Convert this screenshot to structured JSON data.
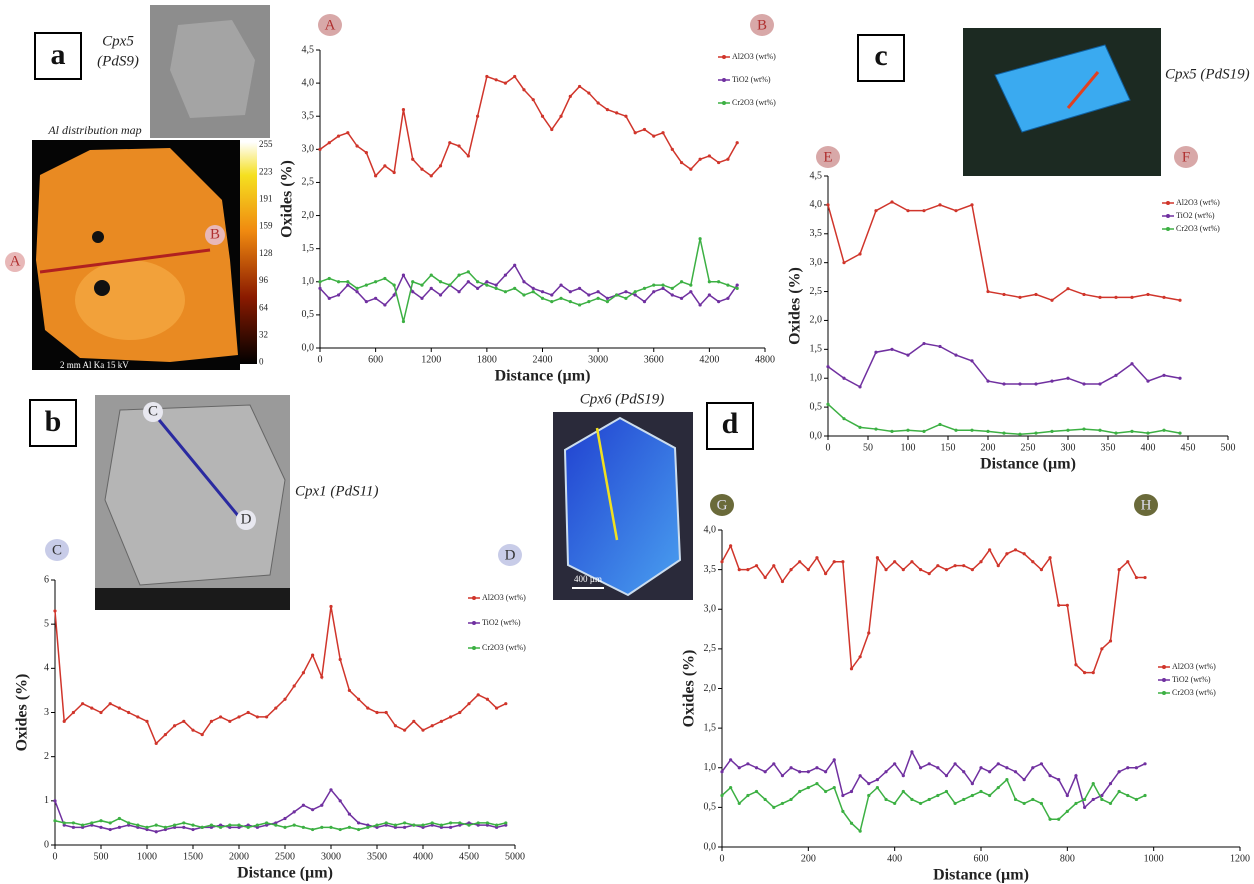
{
  "panels": [
    {
      "letter": "a",
      "sample": [
        "Cpx5",
        "(PdS9)"
      ],
      "map_title": "Al distribution map",
      "map_scale": "2 mm  Al Ka  15 kV",
      "colorbar": [
        "255",
        "223",
        "191",
        "159",
        "128",
        "96",
        "64",
        "32",
        "0"
      ],
      "line_start": "A",
      "line_end": "B"
    },
    {
      "letter": "b",
      "sample": "Cpx1 (PdS11)",
      "line_start": "C",
      "line_end": "D"
    },
    {
      "letter": "c",
      "sample": "Cpx5 (PdS19)",
      "line_start": "E",
      "line_end": "F"
    },
    {
      "letter": "d",
      "sample": "Cpx6 (PdS19)",
      "scale": "400 µm",
      "line_start": "G",
      "line_end": "H"
    }
  ],
  "chart_data": [
    {
      "type": "line",
      "start_marker": "A",
      "end_marker": "B",
      "xlabel": "Distance (µm)",
      "ylabel": "Oxides (%)",
      "xlim": [
        0,
        4800
      ],
      "xticks": [
        0,
        600,
        1200,
        1800,
        2400,
        3000,
        3600,
        4200,
        4800
      ],
      "ylim": [
        0,
        4.5
      ],
      "yticks": [
        {
          "value": 0,
          "label": "0,0"
        },
        {
          "value": 0.5,
          "label": "0,5"
        },
        {
          "value": 1,
          "label": "1,0"
        },
        {
          "value": 1.5,
          "label": "1,5"
        },
        {
          "value": 2,
          "label": "2,0"
        },
        {
          "value": 2.5,
          "label": "2,5"
        },
        {
          "value": 3,
          "label": "3,0"
        },
        {
          "value": 3.5,
          "label": "3,5"
        },
        {
          "value": 4,
          "label": "4,0"
        },
        {
          "value": 4.5,
          "label": "4,5"
        }
      ],
      "x": [
        0,
        100,
        200,
        300,
        400,
        500,
        600,
        700,
        800,
        900,
        1000,
        1100,
        1200,
        1300,
        1400,
        1500,
        1600,
        1700,
        1800,
        1900,
        2000,
        2100,
        2200,
        2300,
        2400,
        2500,
        2600,
        2700,
        2800,
        2900,
        3000,
        3100,
        3200,
        3300,
        3400,
        3500,
        3600,
        3700,
        3800,
        3900,
        4000,
        4100,
        4200,
        4300,
        4400,
        4500
      ],
      "series": [
        {
          "name": "Al2O3 (wt%)",
          "color": "#d0352b",
          "values": [
            3.0,
            3.1,
            3.2,
            3.25,
            3.05,
            2.95,
            2.6,
            2.75,
            2.65,
            3.6,
            2.85,
            2.7,
            2.6,
            2.75,
            3.1,
            3.05,
            2.9,
            3.5,
            4.1,
            4.05,
            4.0,
            4.1,
            3.9,
            3.75,
            3.5,
            3.3,
            3.5,
            3.8,
            3.95,
            3.85,
            3.7,
            3.6,
            3.55,
            3.5,
            3.25,
            3.3,
            3.2,
            3.25,
            3.0,
            2.8,
            2.7,
            2.85,
            2.9,
            2.8,
            2.85,
            3.1
          ]
        },
        {
          "name": "TiO2 (wt%)",
          "color": "#7030a0",
          "values": [
            0.9,
            0.75,
            0.8,
            0.95,
            0.85,
            0.7,
            0.75,
            0.65,
            0.8,
            1.1,
            0.85,
            0.75,
            0.9,
            0.8,
            0.95,
            0.85,
            1.0,
            0.9,
            1.0,
            0.95,
            1.1,
            1.25,
            1.0,
            0.9,
            0.85,
            0.8,
            0.95,
            0.85,
            0.9,
            0.8,
            0.85,
            0.75,
            0.8,
            0.85,
            0.8,
            0.7,
            0.85,
            0.9,
            0.8,
            0.75,
            0.85,
            0.65,
            0.8,
            0.7,
            0.75,
            0.95
          ]
        },
        {
          "name": "Cr2O3 (wt%)",
          "color": "#3cb043",
          "values": [
            1.0,
            1.05,
            1.0,
            1.0,
            0.9,
            0.95,
            1.0,
            1.05,
            0.95,
            0.4,
            1.0,
            0.95,
            1.1,
            1.0,
            0.95,
            1.1,
            1.15,
            1.0,
            0.95,
            0.9,
            0.85,
            0.9,
            0.8,
            0.85,
            0.75,
            0.7,
            0.75,
            0.7,
            0.65,
            0.7,
            0.75,
            0.7,
            0.8,
            0.75,
            0.85,
            0.9,
            0.95,
            0.95,
            0.9,
            1.0,
            0.95,
            1.65,
            1.0,
            1.0,
            0.95,
            0.9
          ]
        }
      ]
    },
    {
      "type": "line",
      "start_marker": "C",
      "end_marker": "D",
      "xlabel": "Distance (µm)",
      "ylabel": "Oxides (%)",
      "xlim": [
        0,
        5000
      ],
      "xticks": [
        0,
        500,
        1000,
        1500,
        2000,
        2500,
        3000,
        3500,
        4000,
        4500,
        5000
      ],
      "ylim": [
        0,
        6
      ],
      "yticks": [
        0,
        1,
        2,
        3,
        4,
        5,
        6
      ],
      "x": [
        0,
        100,
        200,
        300,
        400,
        500,
        600,
        700,
        800,
        900,
        1000,
        1100,
        1200,
        1300,
        1400,
        1500,
        1600,
        1700,
        1800,
        1900,
        2000,
        2100,
        2200,
        2300,
        2400,
        2500,
        2600,
        2700,
        2800,
        2900,
        3000,
        3100,
        3200,
        3300,
        3400,
        3500,
        3600,
        3700,
        3800,
        3900,
        4000,
        4100,
        4200,
        4300,
        4400,
        4500,
        4600,
        4700,
        4800,
        4900
      ],
      "series": [
        {
          "name": "Al2O3 (wt%)",
          "color": "#d0352b",
          "values": [
            5.3,
            2.8,
            3.0,
            3.2,
            3.1,
            3.0,
            3.2,
            3.1,
            3.0,
            2.9,
            2.8,
            2.3,
            2.5,
            2.7,
            2.8,
            2.6,
            2.5,
            2.8,
            2.9,
            2.8,
            2.9,
            3.0,
            2.9,
            2.9,
            3.1,
            3.3,
            3.6,
            3.9,
            4.3,
            3.8,
            5.4,
            4.2,
            3.5,
            3.3,
            3.1,
            3.0,
            3.0,
            2.7,
            2.6,
            2.8,
            2.6,
            2.7,
            2.8,
            2.9,
            3.0,
            3.2,
            3.4,
            3.3,
            3.1,
            3.2
          ]
        },
        {
          "name": "TiO2 (wt%)",
          "color": "#7030a0",
          "values": [
            1.0,
            0.45,
            0.4,
            0.4,
            0.45,
            0.4,
            0.35,
            0.4,
            0.45,
            0.4,
            0.35,
            0.3,
            0.35,
            0.4,
            0.4,
            0.35,
            0.4,
            0.4,
            0.45,
            0.4,
            0.4,
            0.45,
            0.4,
            0.45,
            0.5,
            0.6,
            0.75,
            0.9,
            0.8,
            0.9,
            1.25,
            1.0,
            0.7,
            0.5,
            0.45,
            0.4,
            0.45,
            0.4,
            0.4,
            0.45,
            0.4,
            0.45,
            0.4,
            0.4,
            0.45,
            0.5,
            0.45,
            0.45,
            0.4,
            0.45
          ]
        },
        {
          "name": "Cr2O3 (wt%)",
          "color": "#3cb043",
          "values": [
            0.55,
            0.5,
            0.5,
            0.45,
            0.5,
            0.55,
            0.5,
            0.6,
            0.5,
            0.45,
            0.4,
            0.45,
            0.4,
            0.45,
            0.5,
            0.45,
            0.4,
            0.45,
            0.4,
            0.45,
            0.45,
            0.4,
            0.45,
            0.5,
            0.45,
            0.4,
            0.45,
            0.4,
            0.35,
            0.4,
            0.4,
            0.35,
            0.4,
            0.35,
            0.4,
            0.45,
            0.5,
            0.45,
            0.5,
            0.45,
            0.45,
            0.5,
            0.45,
            0.5,
            0.5,
            0.45,
            0.5,
            0.5,
            0.45,
            0.5
          ]
        }
      ]
    },
    {
      "type": "line",
      "start_marker": "E",
      "end_marker": "F",
      "xlabel": "Distance (µm)",
      "ylabel": "Oxides (%)",
      "xlim": [
        0,
        500
      ],
      "xticks": [
        0,
        50,
        100,
        150,
        200,
        250,
        300,
        350,
        400,
        450,
        500
      ],
      "ylim": [
        0,
        4.5
      ],
      "yticks": [
        {
          "value": 0,
          "label": "0,0"
        },
        {
          "value": 0.5,
          "label": "0,5"
        },
        {
          "value": 1,
          "label": "1,0"
        },
        {
          "value": 1.5,
          "label": "1,5"
        },
        {
          "value": 2,
          "label": "2,0"
        },
        {
          "value": 2.5,
          "label": "2,5"
        },
        {
          "value": 3,
          "label": "3,0"
        },
        {
          "value": 3.5,
          "label": "3,5"
        },
        {
          "value": 4,
          "label": "4,0"
        },
        {
          "value": 4.5,
          "label": "4,5"
        }
      ],
      "x": [
        0,
        20,
        40,
        60,
        80,
        100,
        120,
        140,
        160,
        180,
        200,
        220,
        240,
        260,
        280,
        300,
        320,
        340,
        360,
        380,
        400,
        420,
        440
      ],
      "series": [
        {
          "name": "Al2O3 (wt%)",
          "color": "#d0352b",
          "values": [
            4.0,
            3.0,
            3.15,
            3.9,
            4.05,
            3.9,
            3.9,
            4.0,
            3.9,
            4.0,
            2.5,
            2.45,
            2.4,
            2.45,
            2.35,
            2.55,
            2.45,
            2.4,
            2.4,
            2.4,
            2.45,
            2.4,
            2.35
          ]
        },
        {
          "name": "TiO2 (wt%)",
          "color": "#7030a0",
          "values": [
            1.2,
            1.0,
            0.85,
            1.45,
            1.5,
            1.4,
            1.6,
            1.55,
            1.4,
            1.3,
            0.95,
            0.9,
            0.9,
            0.9,
            0.95,
            1.0,
            0.9,
            0.9,
            1.05,
            1.25,
            0.95,
            1.05,
            1.0
          ]
        },
        {
          "name": "Cr2O3 (wt%)",
          "color": "#3cb043",
          "values": [
            0.55,
            0.3,
            0.15,
            0.12,
            0.08,
            0.1,
            0.08,
            0.2,
            0.1,
            0.1,
            0.08,
            0.05,
            0.03,
            0.05,
            0.08,
            0.1,
            0.12,
            0.1,
            0.05,
            0.08,
            0.05,
            0.1,
            0.05
          ]
        }
      ]
    },
    {
      "type": "line",
      "start_marker": "G",
      "end_marker": "H",
      "xlabel": "Distance (µm)",
      "ylabel": "Oxides (%)",
      "xlim": [
        0,
        1200
      ],
      "xticks": [
        0,
        200,
        400,
        600,
        800,
        1000,
        1200
      ],
      "ylim": [
        0,
        4
      ],
      "yticks": [
        {
          "value": 0,
          "label": "0,0"
        },
        {
          "value": 0.5,
          "label": "0,5"
        },
        {
          "value": 1,
          "label": "1,0"
        },
        {
          "value": 1.5,
          "label": "1,5"
        },
        {
          "value": 2,
          "label": "2,0"
        },
        {
          "value": 2.5,
          "label": "2,5"
        },
        {
          "value": 3,
          "label": "3,0"
        },
        {
          "value": 3.5,
          "label": "3,5"
        },
        {
          "value": 4,
          "label": "4,0"
        }
      ],
      "x": [
        0,
        20,
        40,
        60,
        80,
        100,
        120,
        140,
        160,
        180,
        200,
        220,
        240,
        260,
        280,
        300,
        320,
        340,
        360,
        380,
        400,
        420,
        440,
        460,
        480,
        500,
        520,
        540,
        560,
        580,
        600,
        620,
        640,
        660,
        680,
        700,
        720,
        740,
        760,
        780,
        800,
        820,
        840,
        860,
        880,
        900,
        920,
        940,
        960,
        980
      ],
      "series": [
        {
          "name": "Al2O3 (wt%)",
          "color": "#d0352b",
          "values": [
            3.6,
            3.8,
            3.5,
            3.5,
            3.55,
            3.4,
            3.55,
            3.35,
            3.5,
            3.6,
            3.5,
            3.65,
            3.45,
            3.6,
            3.6,
            2.25,
            2.4,
            2.7,
            3.65,
            3.5,
            3.6,
            3.5,
            3.6,
            3.5,
            3.45,
            3.55,
            3.5,
            3.55,
            3.55,
            3.5,
            3.6,
            3.75,
            3.55,
            3.7,
            3.75,
            3.7,
            3.6,
            3.5,
            3.65,
            3.05,
            3.05,
            2.3,
            2.2,
            2.2,
            2.5,
            2.6,
            3.5,
            3.6,
            3.4,
            3.4
          ]
        },
        {
          "name": "TiO2 (wt%)",
          "color": "#7030a0",
          "values": [
            0.95,
            1.1,
            1.0,
            1.05,
            1.0,
            0.95,
            1.05,
            0.9,
            1.0,
            0.95,
            0.95,
            1.0,
            0.95,
            1.1,
            0.65,
            0.7,
            0.9,
            0.8,
            0.85,
            0.95,
            1.05,
            0.9,
            1.2,
            1.0,
            1.05,
            1.0,
            0.9,
            1.05,
            0.95,
            0.8,
            1.0,
            0.95,
            1.05,
            1.0,
            0.95,
            0.85,
            1.0,
            1.05,
            0.9,
            0.85,
            0.65,
            0.9,
            0.5,
            0.6,
            0.65,
            0.8,
            0.95,
            1.0,
            1.0,
            1.05
          ]
        },
        {
          "name": "Cr2O3 (wt%)",
          "color": "#3cb043",
          "values": [
            0.65,
            0.75,
            0.55,
            0.65,
            0.7,
            0.6,
            0.5,
            0.55,
            0.6,
            0.7,
            0.75,
            0.8,
            0.7,
            0.75,
            0.45,
            0.3,
            0.2,
            0.65,
            0.75,
            0.6,
            0.55,
            0.7,
            0.6,
            0.55,
            0.6,
            0.65,
            0.7,
            0.55,
            0.6,
            0.65,
            0.7,
            0.65,
            0.75,
            0.85,
            0.6,
            0.55,
            0.6,
            0.55,
            0.35,
            0.35,
            0.45,
            0.55,
            0.6,
            0.8,
            0.6,
            0.55,
            0.7,
            0.65,
            0.6,
            0.65
          ]
        }
      ]
    }
  ]
}
